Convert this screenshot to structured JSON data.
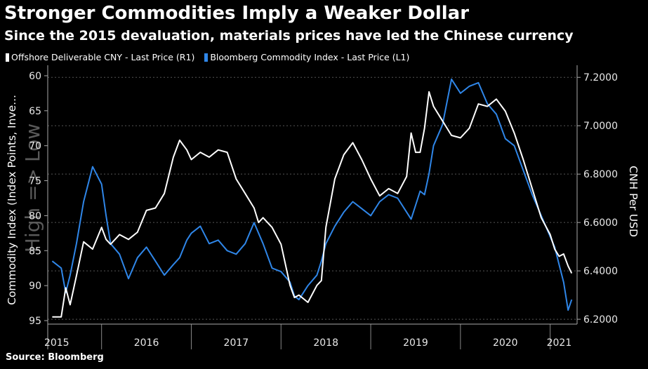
{
  "title": "Stronger Commodities Imply a Weaker Dollar",
  "subtitle": "Since the 2015 devaluation, materials prices have led the Chinese currency",
  "legend": [
    {
      "label": "Offshore Deliverable CNY - Last Price (R1)",
      "color": "#ffffff"
    },
    {
      "label": "Bloomberg Commodity Index - Last Price (L1)",
      "color": "#2f86e8"
    }
  ],
  "source": "Source: Bloomberg",
  "chart_data": {
    "type": "line",
    "title": "Stronger Commodities Imply a Weaker Dollar",
    "subtitle": "Since the 2015 devaluation, materials prices have led the Chinese currency",
    "left_axis": {
      "label": "Commodity Index (Index Points, Inve...",
      "ylim": [
        95.5,
        58.5
      ],
      "inverted": true,
      "ticks": [
        "60",
        "65",
        "70",
        "75",
        "80",
        "85",
        "90",
        "95"
      ],
      "watermark": "High => Low"
    },
    "right_axis": {
      "label": "CNH Per USD",
      "ylim": [
        6.18,
        7.25
      ],
      "ticks": [
        "6.2000",
        "6.4000",
        "6.6000",
        "6.8000",
        "7.0000",
        "7.2000"
      ]
    },
    "x_axis": {
      "range": [
        2015.4,
        2021.3
      ],
      "year_labels": [
        "2015",
        "2016",
        "2017",
        "2018",
        "2019",
        "2020",
        "2021"
      ],
      "year_label_positions": [
        2015.5,
        2016.5,
        2017.5,
        2018.5,
        2019.5,
        2020.5,
        2021.1
      ]
    },
    "grid": true,
    "series": [
      {
        "name": "Offshore Deliverable CNY - Last Price (R1)",
        "axis": "right",
        "color": "#ffffff",
        "x": [
          2015.45,
          2015.55,
          2015.6,
          2015.65,
          2015.72,
          2015.8,
          2015.9,
          2016.0,
          2016.05,
          2016.1,
          2016.2,
          2016.3,
          2016.4,
          2016.5,
          2016.6,
          2016.7,
          2016.8,
          2016.87,
          2016.95,
          2017.0,
          2017.1,
          2017.2,
          2017.3,
          2017.4,
          2017.5,
          2017.6,
          2017.7,
          2017.75,
          2017.8,
          2017.9,
          2018.0,
          2018.1,
          2018.15,
          2018.2,
          2018.3,
          2018.4,
          2018.45,
          2018.5,
          2018.6,
          2018.7,
          2018.8,
          2018.9,
          2019.0,
          2019.1,
          2019.2,
          2019.3,
          2019.4,
          2019.45,
          2019.5,
          2019.55,
          2019.6,
          2019.65,
          2019.7,
          2019.8,
          2019.9,
          2020.0,
          2020.1,
          2020.2,
          2020.3,
          2020.4,
          2020.5,
          2020.6,
          2020.7,
          2020.8,
          2020.9,
          2021.0,
          2021.05,
          2021.1,
          2021.15,
          2021.2,
          2021.24
        ],
        "y": [
          6.21,
          6.21,
          6.33,
          6.26,
          6.38,
          6.52,
          6.49,
          6.58,
          6.53,
          6.51,
          6.55,
          6.53,
          6.56,
          6.65,
          6.66,
          6.72,
          6.87,
          6.94,
          6.9,
          6.86,
          6.89,
          6.87,
          6.9,
          6.89,
          6.78,
          6.72,
          6.66,
          6.6,
          6.62,
          6.58,
          6.51,
          6.34,
          6.29,
          6.3,
          6.27,
          6.34,
          6.36,
          6.58,
          6.78,
          6.88,
          6.93,
          6.86,
          6.78,
          6.71,
          6.74,
          6.72,
          6.79,
          6.97,
          6.89,
          6.89,
          6.99,
          7.14,
          7.08,
          7.02,
          6.96,
          6.95,
          6.99,
          7.09,
          7.08,
          7.11,
          7.06,
          6.97,
          6.86,
          6.74,
          6.62,
          6.55,
          6.49,
          6.46,
          6.47,
          6.42,
          6.39
        ]
      },
      {
        "name": "Bloomberg Commodity Index - Last Price (L1)",
        "axis": "left",
        "color": "#2f86e8",
        "x": [
          2015.45,
          2015.55,
          2015.6,
          2015.65,
          2015.72,
          2015.8,
          2015.9,
          2016.0,
          2016.05,
          2016.1,
          2016.2,
          2016.3,
          2016.4,
          2016.5,
          2016.6,
          2016.7,
          2016.8,
          2016.87,
          2016.95,
          2017.0,
          2017.1,
          2017.2,
          2017.3,
          2017.4,
          2017.5,
          2017.6,
          2017.7,
          2017.75,
          2017.8,
          2017.9,
          2018.0,
          2018.1,
          2018.15,
          2018.2,
          2018.3,
          2018.4,
          2018.45,
          2018.5,
          2018.6,
          2018.7,
          2018.8,
          2018.9,
          2019.0,
          2019.1,
          2019.2,
          2019.3,
          2019.4,
          2019.45,
          2019.5,
          2019.55,
          2019.6,
          2019.65,
          2019.7,
          2019.8,
          2019.9,
          2020.0,
          2020.1,
          2020.2,
          2020.3,
          2020.4,
          2020.5,
          2020.6,
          2020.7,
          2020.8,
          2020.9,
          2021.0,
          2021.05,
          2021.1,
          2021.15,
          2021.2,
          2021.24
        ],
        "y": [
          86.5,
          87.5,
          91.0,
          88.5,
          84.0,
          78.0,
          73.0,
          75.5,
          80.0,
          84.0,
          85.5,
          89.0,
          86.0,
          84.5,
          86.5,
          88.5,
          87.0,
          86.0,
          83.5,
          82.5,
          81.5,
          84.0,
          83.5,
          85.0,
          85.5,
          84.0,
          81.0,
          82.5,
          84.0,
          87.5,
          88.0,
          89.5,
          91.5,
          92.0,
          90.0,
          88.5,
          86.5,
          84.0,
          81.5,
          79.5,
          78.0,
          79.0,
          80.0,
          78.0,
          77.0,
          77.5,
          79.5,
          80.5,
          78.5,
          76.5,
          77.0,
          74.0,
          70.0,
          67.0,
          60.5,
          62.5,
          61.5,
          61.0,
          64.0,
          65.5,
          69.0,
          70.0,
          73.5,
          77.0,
          80.0,
          83.0,
          84.5,
          87.0,
          89.5,
          93.5,
          92.0
        ]
      }
    ]
  }
}
